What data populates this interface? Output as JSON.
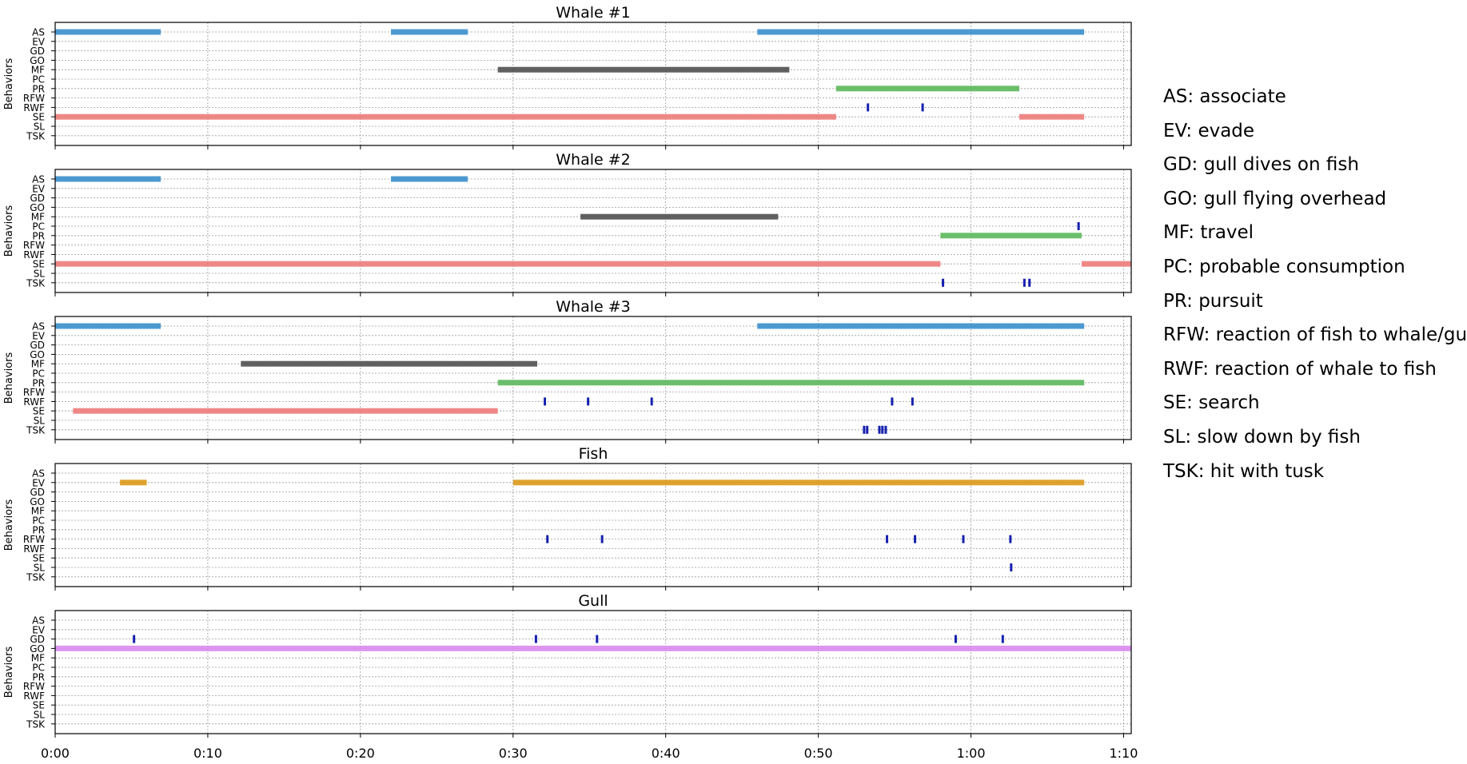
{
  "chart_data": {
    "type": "timeline",
    "xlim": [
      0,
      4230
    ],
    "x_ticks": [
      {
        "value": 0,
        "label": "0:00"
      },
      {
        "value": 600,
        "label": "0:10"
      },
      {
        "value": 1200,
        "label": "0:20"
      },
      {
        "value": 1800,
        "label": "0:30"
      },
      {
        "value": 2400,
        "label": "0:40"
      },
      {
        "value": 3000,
        "label": "0:50"
      },
      {
        "value": 3600,
        "label": "1:00"
      },
      {
        "value": 4200,
        "label": "1:10"
      }
    ],
    "ylabel": "Behaviors",
    "behaviors": [
      "AS",
      "EV",
      "GD",
      "GO",
      "MF",
      "PC",
      "PR",
      "RFW",
      "RWF",
      "SE",
      "SL",
      "TSK"
    ],
    "colors": {
      "AS": "#3a8fcc",
      "MF": "#505050",
      "PR": "#5cb85c",
      "SE": "#ee7b7b",
      "EV": "#dc9a18",
      "GO": "#d98aee",
      "event": "#1520b0"
    },
    "panels": [
      {
        "title": "Whale #1",
        "intervals": [
          {
            "behavior": "AS",
            "start": 0,
            "end": 415
          },
          {
            "behavior": "AS",
            "start": 1320,
            "end": 1622
          },
          {
            "behavior": "AS",
            "start": 2760,
            "end": 4045
          },
          {
            "behavior": "MF",
            "start": 1740,
            "end": 2886
          },
          {
            "behavior": "PR",
            "start": 3070,
            "end": 3790
          },
          {
            "behavior": "SE",
            "start": 0,
            "end": 3070
          },
          {
            "behavior": "SE",
            "start": 3790,
            "end": 4045
          }
        ],
        "events": [
          {
            "behavior": "RWF",
            "time": 3195
          },
          {
            "behavior": "RWF",
            "time": 3410
          }
        ]
      },
      {
        "title": "Whale #2",
        "intervals": [
          {
            "behavior": "AS",
            "start": 0,
            "end": 415
          },
          {
            "behavior": "AS",
            "start": 1320,
            "end": 1622
          },
          {
            "behavior": "MF",
            "start": 2065,
            "end": 2842
          },
          {
            "behavior": "PR",
            "start": 3480,
            "end": 4035
          },
          {
            "behavior": "SE",
            "start": 0,
            "end": 3480
          },
          {
            "behavior": "SE",
            "start": 4035,
            "end": 4230
          }
        ],
        "events": [
          {
            "behavior": "PC",
            "time": 4023
          },
          {
            "behavior": "TSK",
            "time": 3490
          },
          {
            "behavior": "TSK",
            "time": 3810
          },
          {
            "behavior": "TSK",
            "time": 3830
          }
        ]
      },
      {
        "title": "Whale #3",
        "intervals": [
          {
            "behavior": "AS",
            "start": 0,
            "end": 415
          },
          {
            "behavior": "AS",
            "start": 2760,
            "end": 4045
          },
          {
            "behavior": "MF",
            "start": 730,
            "end": 1895
          },
          {
            "behavior": "PR",
            "start": 1740,
            "end": 4045
          },
          {
            "behavior": "SE",
            "start": 70,
            "end": 1740
          }
        ],
        "events": [
          {
            "behavior": "RWF",
            "time": 1925
          },
          {
            "behavior": "RWF",
            "time": 2095
          },
          {
            "behavior": "RWF",
            "time": 2345
          },
          {
            "behavior": "RWF",
            "time": 3290
          },
          {
            "behavior": "RWF",
            "time": 3370
          },
          {
            "behavior": "TSK",
            "time": 3180
          },
          {
            "behavior": "TSK",
            "time": 3192
          },
          {
            "behavior": "TSK",
            "time": 3240
          },
          {
            "behavior": "TSK",
            "time": 3252
          },
          {
            "behavior": "TSK",
            "time": 3265
          }
        ]
      },
      {
        "title": "Fish",
        "intervals": [
          {
            "behavior": "EV",
            "start": 255,
            "end": 360
          },
          {
            "behavior": "EV",
            "start": 1800,
            "end": 4045
          }
        ],
        "events": [
          {
            "behavior": "RFW",
            "time": 1935
          },
          {
            "behavior": "RFW",
            "time": 2150
          },
          {
            "behavior": "RFW",
            "time": 3270
          },
          {
            "behavior": "RFW",
            "time": 3380
          },
          {
            "behavior": "RFW",
            "time": 3570
          },
          {
            "behavior": "RFW",
            "time": 3755
          },
          {
            "behavior": "SL",
            "time": 3758
          }
        ]
      },
      {
        "title": "Gull",
        "intervals": [
          {
            "behavior": "GO",
            "start": 0,
            "end": 4230
          }
        ],
        "events": [
          {
            "behavior": "GD",
            "time": 310
          },
          {
            "behavior": "GD",
            "time": 1890
          },
          {
            "behavior": "GD",
            "time": 2130
          },
          {
            "behavior": "GD",
            "time": 3540
          },
          {
            "behavior": "GD",
            "time": 3725
          }
        ]
      }
    ],
    "legend": [
      "AS: associate",
      "EV: evade",
      "GD: gull dives on fish",
      "GO: gull flying overhead",
      "MF: travel",
      "PC: probable consumption",
      "PR: pursuit",
      "RFW: reaction of fish to whale/gull",
      "RWF: reaction of whale to fish",
      "SE: search",
      "SL: slow down by fish",
      "TSK: hit with tusk"
    ],
    "grid": true
  }
}
